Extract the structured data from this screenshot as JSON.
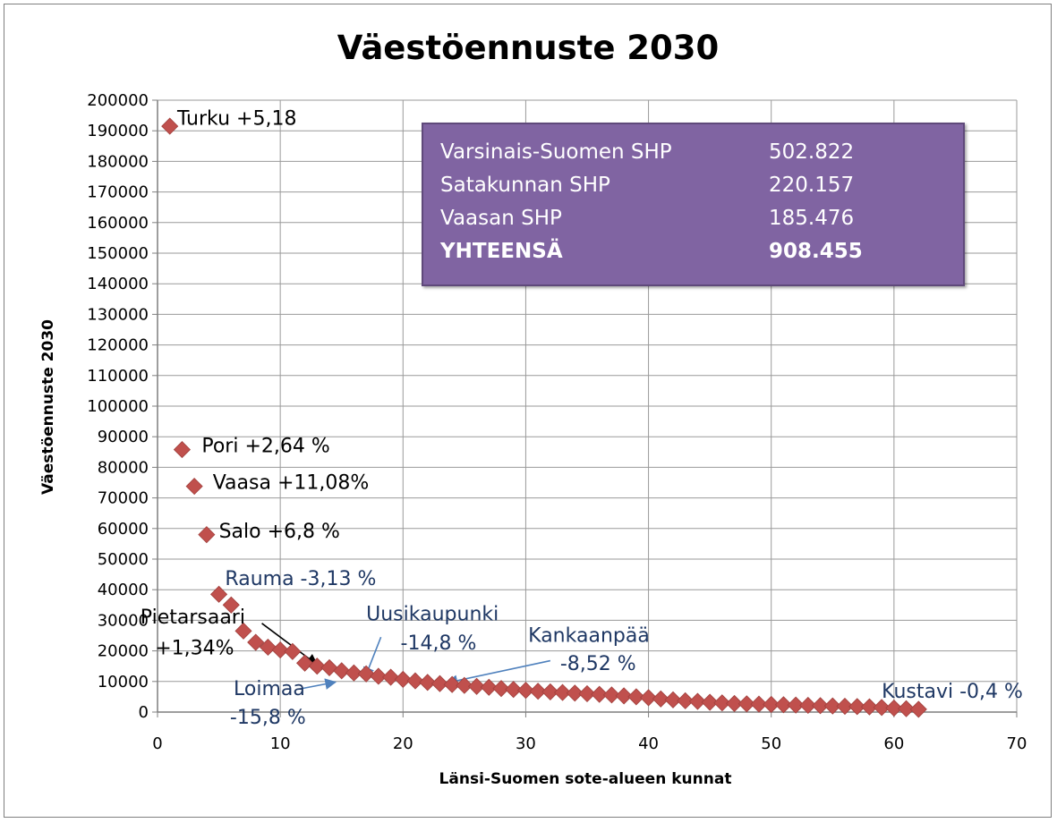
{
  "chart_data": {
    "type": "scatter",
    "title": "Väestöennuste 2030",
    "xlabel": "Länsi-Suomen sote-alueen kunnat",
    "ylabel": "Väestöennuste 2030",
    "xlim": [
      0,
      70
    ],
    "ylim": [
      0,
      200000
    ],
    "x_ticks": [
      "0",
      "10",
      "20",
      "30",
      "40",
      "50",
      "60",
      "70"
    ],
    "y_ticks": [
      "0",
      "10000",
      "20000",
      "30000",
      "40000",
      "50000",
      "60000",
      "70000",
      "80000",
      "90000",
      "100000",
      "110000",
      "120000",
      "130000",
      "140000",
      "150000",
      "160000",
      "170000",
      "180000",
      "190000",
      "200000"
    ],
    "grid": true,
    "marker": "diamond",
    "marker_color": "#c0504d",
    "series": [
      {
        "x": [
          1,
          2,
          3,
          4,
          5,
          6,
          7,
          8,
          9,
          10,
          11,
          12,
          13,
          14,
          15,
          16,
          17,
          18,
          19,
          20,
          21,
          22,
          23,
          24,
          25,
          26,
          27,
          28,
          29,
          30,
          31,
          32,
          33,
          34,
          35,
          36,
          37,
          38,
          39,
          40,
          41,
          42,
          43,
          44,
          45,
          46,
          47,
          48,
          49,
          50,
          51,
          52,
          53,
          54,
          55,
          56,
          57,
          58,
          59,
          60,
          61,
          62
        ],
        "y": [
          191500,
          85800,
          73800,
          58000,
          38500,
          35000,
          26500,
          22800,
          21200,
          20300,
          19800,
          16000,
          15000,
          14500,
          13500,
          12800,
          12500,
          11700,
          11400,
          10700,
          10200,
          9700,
          9300,
          9000,
          8700,
          8400,
          8100,
          7700,
          7400,
          7100,
          6800,
          6600,
          6400,
          6200,
          6000,
          5800,
          5600,
          5300,
          5000,
          4700,
          4300,
          4000,
          3700,
          3500,
          3200,
          3000,
          2800,
          2700,
          2600,
          2500,
          2400,
          2300,
          2200,
          2100,
          2000,
          1900,
          1800,
          1700,
          1500,
          1300,
          1100,
          900
        ]
      }
    ],
    "annotations": [
      {
        "text": "Turku +5,18",
        "color": "#000000"
      },
      {
        "text": "Pori +2,64 %",
        "color": "#000000"
      },
      {
        "text": "Vaasa +11,08%",
        "color": "#000000"
      },
      {
        "text": "Salo +6,8 %",
        "color": "#000000"
      },
      {
        "text": "Rauma -3,13 %",
        "color": "#1f3864"
      },
      {
        "text": "Pietarsaari",
        "color": "#000000"
      },
      {
        "text": "+1,34%",
        "color": "#000000"
      },
      {
        "text": "Uusikaupunki",
        "color": "#1f3864"
      },
      {
        "text": "-14,8 %",
        "color": "#1f3864"
      },
      {
        "text": "Kankaanpää",
        "color": "#1f3864"
      },
      {
        "text": "-8,52 %",
        "color": "#1f3864"
      },
      {
        "text": "Loimaa",
        "color": "#1f3864"
      },
      {
        "text": "-15,8 %",
        "color": "#1f3864"
      },
      {
        "text": "Kustavi -0,4 %",
        "color": "#1f3864"
      }
    ]
  },
  "info_box": {
    "rows": [
      {
        "name": "Varsinais-Suomen SHP",
        "value": "502.822"
      },
      {
        "name": "Satakunnan SHP",
        "value": "220.157"
      },
      {
        "name": "Vaasan SHP",
        "value": "185.476"
      },
      {
        "name": "YHTEENSÄ",
        "value": "908.455"
      }
    ]
  }
}
